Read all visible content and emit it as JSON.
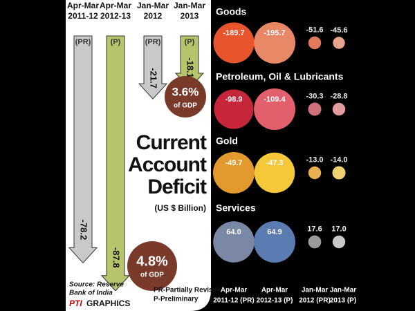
{
  "chart_data": [
    {
      "type": "arrow-bar",
      "title": [
        "Current",
        "Account",
        "Deficit"
      ],
      "subtitle": "(US $ Billion)",
      "categories": [
        [
          "Apr-Mar",
          "2011-12"
        ],
        [
          "Apr-Mar",
          "2012-13"
        ],
        [
          "Jan-Mar",
          "2012"
        ],
        [
          "Jan-Mar",
          "2013"
        ]
      ],
      "tags": [
        "(PR)",
        "(P)",
        "(PR)",
        "(P)"
      ],
      "values": [
        -78.2,
        -87.8,
        -21.7,
        -18.1
      ],
      "colors": [
        "#c9c9c9",
        "#b8c46c",
        "#c9c9c9",
        "#b8c46c"
      ],
      "annotations": [
        {
          "value": 3.6,
          "label": "3.6%",
          "text": "of GDP"
        },
        {
          "value": 4.8,
          "label": "4.8%",
          "text": "of GDP"
        }
      ],
      "source": [
        "Source: Reserve",
        "Bank of India"
      ],
      "notes": [
        "PR-Partially Revised",
        "P-Preliminary"
      ],
      "credit": [
        "PTI",
        "GRAPHICS"
      ]
    },
    {
      "type": "bubble",
      "categories": [
        [
          "Apr-Mar",
          "2011-12 (PR)"
        ],
        [
          "Apr-Mar",
          "2012-13 (P)"
        ],
        [
          "Jan-Mar",
          "2012 (PR)"
        ],
        [
          "Jan-Mar",
          "2013 (P)"
        ]
      ],
      "series": [
        {
          "name": "Goods",
          "colors": [
            "#e8552c",
            "#e88866",
            "#e07a5a",
            "#e8a58c"
          ],
          "values": [
            -189.7,
            -195.7,
            -51.6,
            -45.6
          ]
        },
        {
          "name": "Petroleum, Oil & Lubricants",
          "colors": [
            "#c6263a",
            "#e2606c",
            "#d0707a",
            "#e09aa0"
          ],
          "values": [
            -98.9,
            -109.4,
            -30.3,
            -28.8
          ]
        },
        {
          "name": "Gold",
          "colors": [
            "#e29a2e",
            "#f5c83a",
            "#e8b050",
            "#f0d070"
          ],
          "values": [
            -49.7,
            -47.3,
            -13.0,
            -14.0
          ],
          "value_labels": [
            "-49.7",
            "-47.3",
            "-13.0",
            "-14.0"
          ]
        },
        {
          "name": "Services",
          "colors": [
            "#7a88a6",
            "#5a7cb2",
            "#9a9a9a",
            "#c8c8c8"
          ],
          "values": [
            64.0,
            64.9,
            17.6,
            17.0
          ],
          "value_labels": [
            "64.0",
            "64.9",
            "17.6",
            "17.0"
          ]
        }
      ]
    }
  ]
}
